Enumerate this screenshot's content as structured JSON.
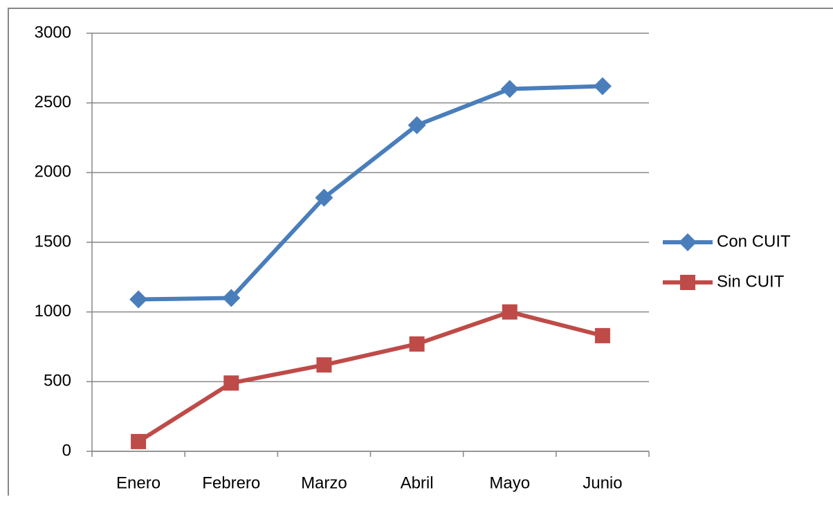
{
  "chart_data": {
    "type": "line",
    "categories": [
      "Enero",
      "Febrero",
      "Marzo",
      "Abril",
      "Mayo",
      "Junio"
    ],
    "series": [
      {
        "name": "Con CUIT",
        "color": "#4a7ebb",
        "marker": "diamond",
        "values": [
          1090,
          1100,
          1820,
          2340,
          2600,
          2620
        ]
      },
      {
        "name": "Sin CUIT",
        "color": "#be4b48",
        "marker": "square",
        "values": [
          70,
          490,
          620,
          770,
          1000,
          830
        ]
      }
    ],
    "ylim": [
      0,
      3000
    ],
    "yticks": [
      0,
      500,
      1000,
      1500,
      2000,
      2500,
      3000
    ],
    "grid": true,
    "legend": "right"
  }
}
